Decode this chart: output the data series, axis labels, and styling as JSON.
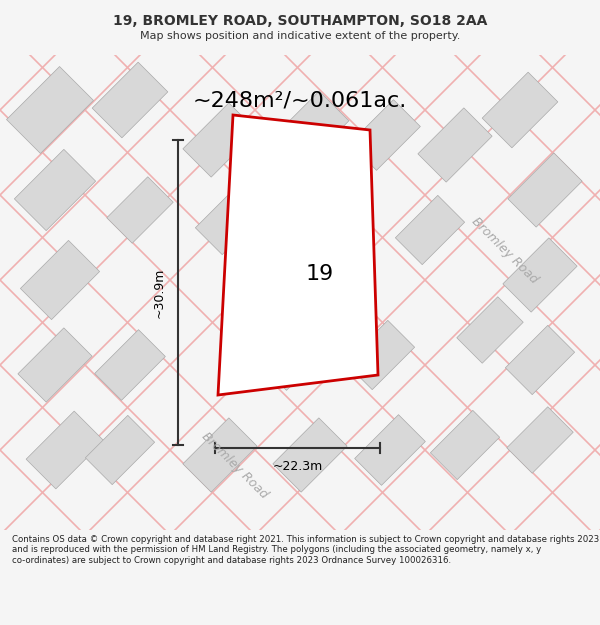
{
  "title_line1": "19, BROMLEY ROAD, SOUTHAMPTON, SO18 2AA",
  "title_line2": "Map shows position and indicative extent of the property.",
  "area_label": "~248m²/~0.061ac.",
  "property_number": "19",
  "dim_vertical": "~30.9m",
  "dim_horizontal": "~22.3m",
  "road_label_bottom": "Bromley Road",
  "road_label_right": "Bromley Road",
  "footer_text": "Contains OS data © Crown copyright and database right 2021. This information is subject to Crown copyright and database rights 2023 and is reproduced with the permission of HM Land Registry. The polygons (including the associated geometry, namely x, y co-ordinates) are subject to Crown copyright and database rights 2023 Ordnance Survey 100026316.",
  "bg_color": "#f5f5f5",
  "map_bg": "#ffffff",
  "building_fill": "#d8d8d8",
  "building_edge": "#aaaaaa",
  "road_line_color": "#f0b0b0",
  "highlight_color": "#cc0000",
  "highlight_fill": "#ffffff",
  "dim_line_color": "#333333",
  "text_color": "#333333",
  "footer_color": "#222222"
}
